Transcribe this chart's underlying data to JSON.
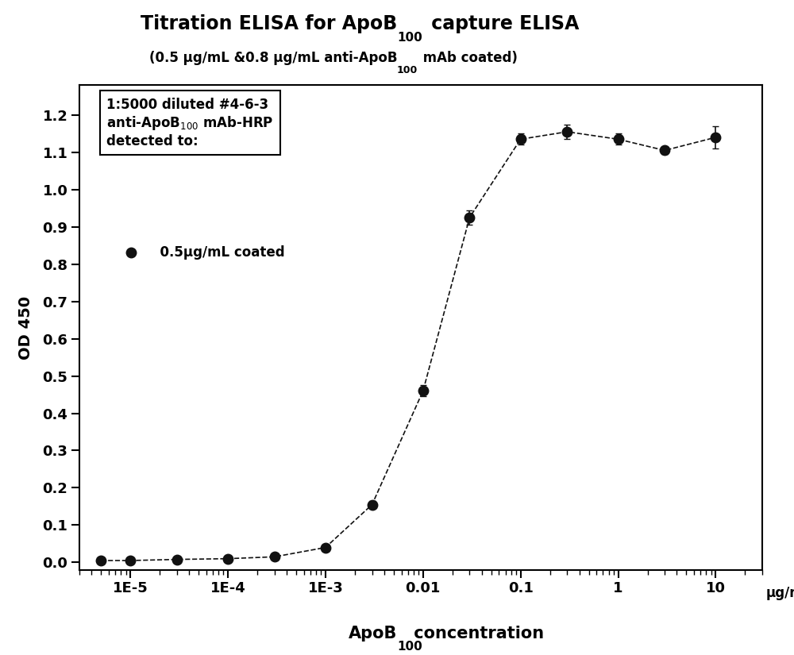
{
  "ylabel": "OD 450",
  "xmin": 3e-06,
  "xmax": 30,
  "ymin": -0.02,
  "ymax": 1.28,
  "yticks": [
    0.0,
    0.1,
    0.2,
    0.3,
    0.4,
    0.5,
    0.6,
    0.7,
    0.8,
    0.9,
    1.0,
    1.1,
    1.2
  ],
  "x_data": [
    5e-06,
    1e-05,
    3e-05,
    0.0001,
    0.0003,
    0.001,
    0.003,
    0.01,
    0.03,
    0.1,
    0.3,
    1.0,
    3.0,
    10.0
  ],
  "y_data": [
    0.005,
    0.005,
    0.008,
    0.01,
    0.015,
    0.04,
    0.155,
    0.46,
    0.925,
    1.135,
    1.155,
    1.135,
    1.105,
    1.14
  ],
  "y_err": [
    0.002,
    0.002,
    0.003,
    0.003,
    0.004,
    0.008,
    0.01,
    0.015,
    0.02,
    0.015,
    0.02,
    0.015,
    0.01,
    0.03
  ],
  "marker_color": "#111111",
  "marker_size": 9,
  "bg_color": "#ffffff",
  "font_color": "#000000",
  "xtick_positions": [
    1e-05,
    0.0001,
    0.001,
    0.01,
    0.1,
    1,
    10
  ],
  "xtick_labels": [
    "1E-5",
    "1E-4",
    "1E-3",
    "0.01",
    "0.1",
    "1",
    "10"
  ]
}
